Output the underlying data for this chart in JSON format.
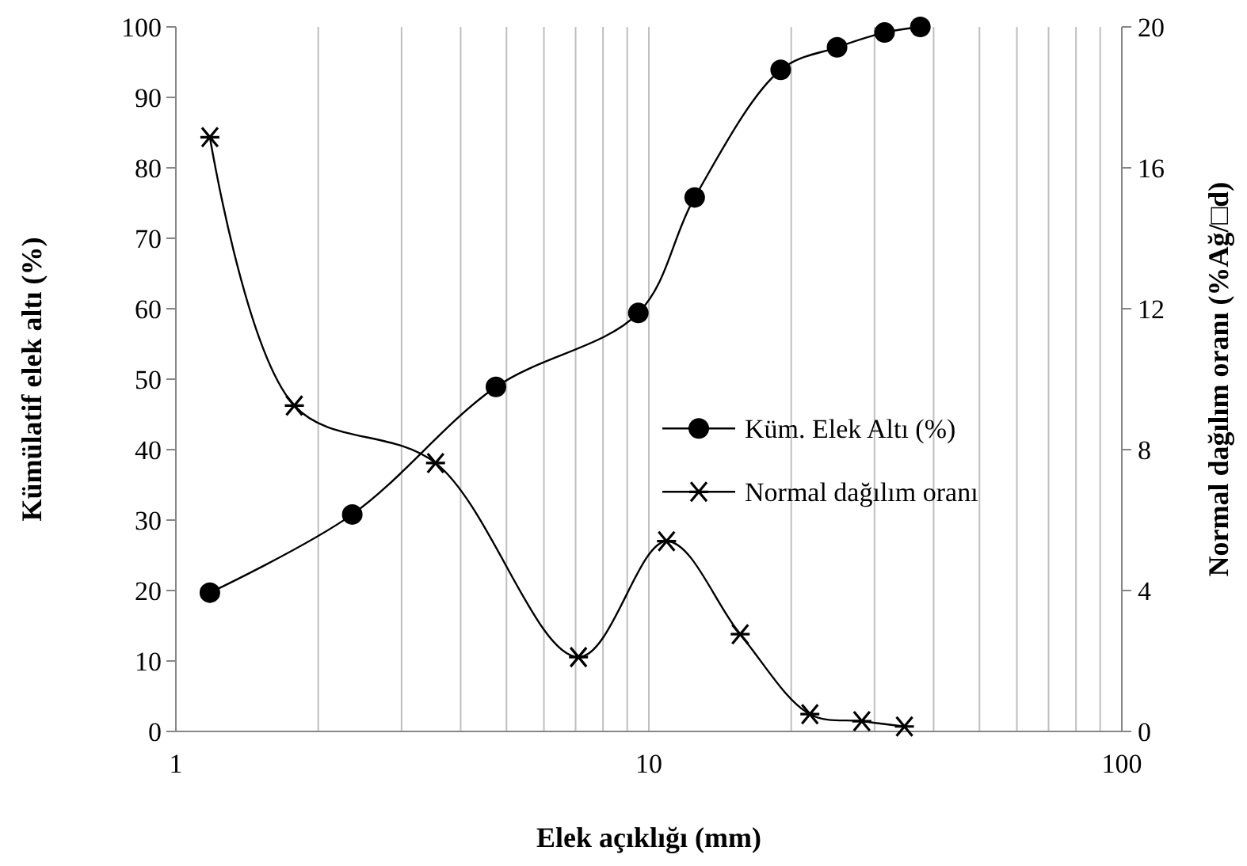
{
  "chart_data": {
    "type": "line",
    "xlabel": "Elek açıklığı (mm)",
    "ylabel": "Kümülatif elek altı (%)",
    "y2label": "Normal dağılım oranı (%Ağ/□d)",
    "log": "x",
    "grid": "x",
    "legend": "right",
    "line_style": "solid",
    "xlim": [
      1,
      100
    ],
    "xticks": [
      1,
      {
        "value": 2,
        "label": null
      },
      {
        "value": 3,
        "label": null
      },
      {
        "value": 4,
        "label": null
      },
      {
        "value": 5,
        "label": null
      },
      {
        "value": 6,
        "label": null
      },
      {
        "value": 7,
        "label": null
      },
      {
        "value": 8,
        "label": null
      },
      {
        "value": 9,
        "label": null
      },
      10,
      {
        "value": 20,
        "label": null
      },
      {
        "value": 30,
        "label": null
      },
      {
        "value": 40,
        "label": null
      },
      {
        "value": 50,
        "label": null
      },
      {
        "value": 60,
        "label": null
      },
      {
        "value": 70,
        "label": null
      },
      {
        "value": 80,
        "label": null
      },
      {
        "value": 90,
        "label": null
      },
      100
    ],
    "ylim": [
      0,
      100
    ],
    "yticks": [
      0,
      10,
      20,
      30,
      40,
      50,
      60,
      70,
      80,
      90,
      100
    ],
    "y2lim": [
      0,
      20
    ],
    "y2ticks": [
      0,
      4,
      8,
      12,
      16,
      20
    ],
    "series": [
      {
        "name": "Küm. Elek Altı (%)",
        "color": "#000000",
        "marker": "circle",
        "x": [
          1.18,
          2.36,
          4.75,
          9.5,
          12.5,
          19,
          25,
          31.5,
          37.5
        ],
        "values": [
          19.7,
          30.8,
          48.9,
          59.4,
          75.8,
          93.9,
          97.1,
          99.2,
          100
        ]
      },
      {
        "name": "Normal dağılım oranı",
        "color": "#000000",
        "marker": "cross",
        "axis": "y2",
        "x": [
          1.18,
          1.78,
          3.54,
          7.1,
          10.9,
          15.6,
          21.9,
          28.2,
          34.7
        ],
        "values": [
          16.87,
          9.25,
          7.62,
          2.11,
          5.4,
          2.76,
          0.49,
          0.29,
          0.14
        ]
      }
    ]
  }
}
